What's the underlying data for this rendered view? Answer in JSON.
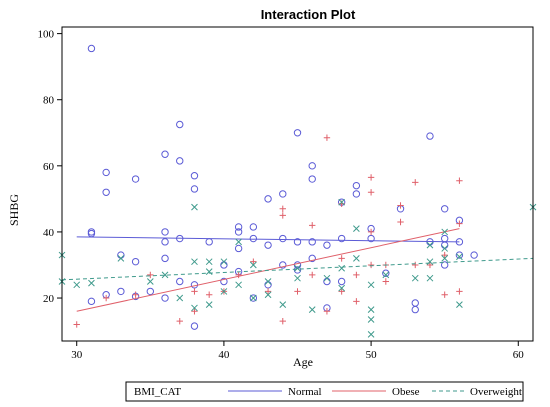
{
  "chart_data": {
    "type": "scatter",
    "title": "Interaction Plot",
    "xlabel": "Age",
    "ylabel": "SHBG",
    "xlim": [
      29,
      61
    ],
    "ylim": [
      7,
      102
    ],
    "xticks": [
      30,
      40,
      50,
      60
    ],
    "yticks": [
      20,
      40,
      60,
      80,
      100
    ],
    "grid": false,
    "legend": {
      "position": "bottom",
      "title": "BMI_CAT"
    },
    "series": [
      {
        "name": "Normal",
        "color": "#5b5bd6",
        "marker": "circle",
        "line": {
          "style": "solid",
          "x": [
            30,
            56
          ],
          "y": [
            38.5,
            37
          ]
        },
        "points": [
          [
            31,
            95.5
          ],
          [
            31,
            40
          ],
          [
            31,
            39.5
          ],
          [
            31,
            19
          ],
          [
            32,
            58
          ],
          [
            32,
            52
          ],
          [
            32,
            21
          ],
          [
            33,
            33
          ],
          [
            33,
            22
          ],
          [
            34,
            56
          ],
          [
            34,
            31
          ],
          [
            34,
            20.5
          ],
          [
            35,
            22
          ],
          [
            36,
            63.5
          ],
          [
            36,
            40
          ],
          [
            36,
            37
          ],
          [
            36,
            32
          ],
          [
            36,
            20
          ],
          [
            37,
            72.5
          ],
          [
            37,
            61.5
          ],
          [
            37,
            38
          ],
          [
            37,
            25
          ],
          [
            38,
            57
          ],
          [
            38,
            53
          ],
          [
            38,
            24
          ],
          [
            38,
            11.5
          ],
          [
            39,
            37
          ],
          [
            40,
            30
          ],
          [
            40,
            25
          ],
          [
            41,
            41.5
          ],
          [
            41,
            40
          ],
          [
            41,
            35
          ],
          [
            41,
            28
          ],
          [
            42,
            41.5
          ],
          [
            42,
            38
          ],
          [
            42,
            20
          ],
          [
            43,
            50
          ],
          [
            43,
            36
          ],
          [
            43,
            24
          ],
          [
            44,
            51.5
          ],
          [
            44,
            38
          ],
          [
            44,
            30
          ],
          [
            45,
            70
          ],
          [
            45,
            37
          ],
          [
            45,
            30
          ],
          [
            45,
            28.5
          ],
          [
            46,
            60
          ],
          [
            46,
            56
          ],
          [
            46,
            37
          ],
          [
            46,
            32
          ],
          [
            47,
            36
          ],
          [
            47,
            25
          ],
          [
            47,
            17
          ],
          [
            48,
            49
          ],
          [
            48,
            38
          ],
          [
            48,
            25
          ],
          [
            49,
            51.5
          ],
          [
            49,
            54
          ],
          [
            50,
            38
          ],
          [
            50,
            41
          ],
          [
            51,
            27.5
          ],
          [
            52,
            47
          ],
          [
            53,
            18.5
          ],
          [
            53,
            16.5
          ],
          [
            54,
            69
          ],
          [
            54,
            37
          ],
          [
            55,
            47
          ],
          [
            55,
            38
          ],
          [
            55,
            36
          ],
          [
            55,
            30
          ],
          [
            56,
            43.5
          ],
          [
            56,
            37
          ],
          [
            56,
            33
          ],
          [
            57,
            33
          ]
        ]
      },
      {
        "name": "Obese",
        "color": "#e0606a",
        "marker": "plus",
        "line": {
          "style": "solid",
          "x": [
            30,
            56
          ],
          "y": [
            16,
            41
          ]
        },
        "points": [
          [
            30,
            12
          ],
          [
            32,
            20
          ],
          [
            34,
            21
          ],
          [
            35,
            27
          ],
          [
            37,
            13
          ],
          [
            38,
            16
          ],
          [
            38,
            22
          ],
          [
            39,
            21
          ],
          [
            40,
            22
          ],
          [
            41,
            27
          ],
          [
            42,
            31
          ],
          [
            43,
            22
          ],
          [
            44,
            47
          ],
          [
            44,
            45
          ],
          [
            44,
            13
          ],
          [
            45,
            22
          ],
          [
            46,
            42
          ],
          [
            46,
            27
          ],
          [
            47,
            68.5
          ],
          [
            47,
            16
          ],
          [
            48,
            48.5
          ],
          [
            48,
            32
          ],
          [
            48,
            22
          ],
          [
            49,
            27
          ],
          [
            49,
            19
          ],
          [
            50,
            56.5
          ],
          [
            50,
            52
          ],
          [
            50,
            40
          ],
          [
            50,
            30
          ],
          [
            51,
            30
          ],
          [
            51,
            25
          ],
          [
            52,
            48
          ],
          [
            52,
            43
          ],
          [
            53,
            55
          ],
          [
            53,
            30
          ],
          [
            54,
            30
          ],
          [
            55,
            33
          ],
          [
            55,
            21
          ],
          [
            56,
            55.5
          ],
          [
            56,
            42.5
          ],
          [
            56,
            22
          ]
        ]
      },
      {
        "name": "Overweight",
        "color": "#3f9a8c",
        "marker": "x",
        "line": {
          "style": "dashed",
          "x": [
            29,
            61
          ],
          "y": [
            25.5,
            32
          ]
        },
        "points": [
          [
            29,
            33
          ],
          [
            29,
            25
          ],
          [
            30,
            24
          ],
          [
            31,
            24.5
          ],
          [
            33,
            32
          ],
          [
            35,
            25
          ],
          [
            36,
            27
          ],
          [
            37,
            20
          ],
          [
            38,
            47.5
          ],
          [
            38,
            31
          ],
          [
            38,
            17
          ],
          [
            39,
            31
          ],
          [
            39,
            28
          ],
          [
            39,
            18
          ],
          [
            40,
            31
          ],
          [
            40,
            22
          ],
          [
            41,
            37
          ],
          [
            41,
            24
          ],
          [
            42,
            30
          ],
          [
            42,
            20
          ],
          [
            43,
            25
          ],
          [
            43,
            21
          ],
          [
            44,
            18
          ],
          [
            45,
            29
          ],
          [
            45,
            26
          ],
          [
            46,
            16.5
          ],
          [
            47,
            26
          ],
          [
            48,
            49
          ],
          [
            48,
            29
          ],
          [
            48,
            23
          ],
          [
            49,
            41
          ],
          [
            49,
            32
          ],
          [
            50,
            24
          ],
          [
            50,
            16.5
          ],
          [
            50,
            13.5
          ],
          [
            50,
            9
          ],
          [
            51,
            27
          ],
          [
            53,
            26
          ],
          [
            54,
            36
          ],
          [
            54,
            31
          ],
          [
            54,
            26
          ],
          [
            55,
            40
          ],
          [
            55,
            35
          ],
          [
            55,
            32
          ],
          [
            56,
            32.5
          ],
          [
            56,
            18
          ],
          [
            61,
            47.5
          ]
        ]
      }
    ]
  }
}
